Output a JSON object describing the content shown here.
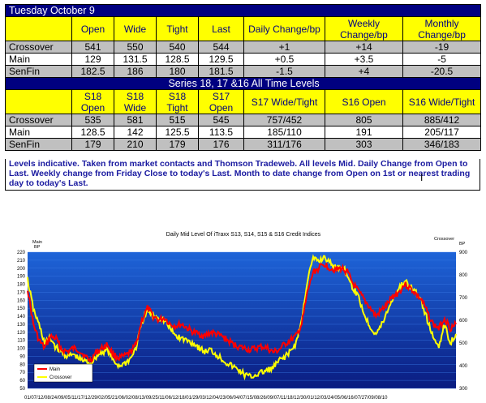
{
  "table1": {
    "title": "Tuesday October 9",
    "headers": [
      "Open",
      "Wide",
      "Tight",
      "Last",
      "Daily Change/bp",
      "Weekly Change/bp",
      "Monthly Change/bp"
    ],
    "rows": [
      {
        "label": "Crossover",
        "cells": [
          "541",
          "550",
          "540",
          "544",
          "+1",
          "+14",
          "-19"
        ]
      },
      {
        "label": "Main",
        "cells": [
          "129",
          "131.5",
          "128.5",
          "129.5",
          "+0.5",
          "+3.5",
          "-5"
        ]
      },
      {
        "label": "SenFin",
        "cells": [
          "182.5",
          "186",
          "180",
          "181.5",
          "-1.5",
          "+4",
          "-20.5"
        ]
      }
    ]
  },
  "table2": {
    "title": "Series 18, 17 &16 All Time Levels",
    "headers": [
      "S18 Open",
      "S18 Wide",
      "S18 Tight",
      "S17 Open",
      "S17 Wide/Tight",
      "S16 Open",
      "S16 Wide/Tight"
    ],
    "rows": [
      {
        "label": "Crossover",
        "cells": [
          "535",
          "581",
          "515",
          "545",
          "757/452",
          "805",
          "885/412"
        ]
      },
      {
        "label": "Main",
        "cells": [
          "128.5",
          "142",
          "125.5",
          "113.5",
          "185/110",
          "191",
          "205/117"
        ]
      },
      {
        "label": "SenFin",
        "cells": [
          "179",
          "210",
          "179",
          "176",
          "311/176",
          "303",
          "346/183"
        ]
      }
    ]
  },
  "note": "Levels indicative. Taken from market contacts and Thomson Tradeweb. All levels Mid. Daily Change from Open to Last. Weekly change from Friday Close to today's Last. Month to date change from Open on 1st or nearest trading day to today's Last.",
  "chart_data": {
    "type": "line",
    "title": "Daily Mid Level Of iTraxx S13, S14, S15 & S16 Credit Indices",
    "left_axis_title": "Main\nBP",
    "right_axis_title": "Crossover\nBP",
    "ylim_left": [
      50,
      220
    ],
    "yticks_left": [
      50,
      60,
      70,
      80,
      90,
      100,
      110,
      120,
      130,
      140,
      150,
      160,
      170,
      180,
      190,
      200,
      210,
      220
    ],
    "ylim_right": [
      300,
      900
    ],
    "yticks_right": [
      300,
      400,
      500,
      600,
      700,
      800,
      900
    ],
    "xtick_labels": "01/07/12/08/24/09/05/11/17/12/29/02/05/21/06/02/08/13/09/25/11/06/12/18/01/29/03/12/04/23/06/04/07/15/08/26/09/07/11/18/12/30/01/12/03/24/05/06/16/07/27/09/08/10",
    "legend": [
      "Main",
      "Crossover"
    ],
    "colors": {
      "main": "#ff0000",
      "crossover": "#ffff00",
      "bg_top": "#1e64d8",
      "bg_bottom": "#0a1c80"
    },
    "series": [
      {
        "name": "Main",
        "axis": "left",
        "values": [
          175,
          130,
          110,
          100,
          115,
          112,
          98,
          96,
          100,
          98,
          90,
          85,
          95,
          100,
          105,
          92,
          88,
          90,
          95,
          105,
          135,
          150,
          140,
          135,
          138,
          130,
          128,
          130,
          125,
          120,
          118,
          115,
          120,
          118,
          115,
          110,
          105,
          102,
          100,
          98,
          100,
          102,
          100,
          95,
          98,
          105,
          110,
          115,
          130,
          170,
          195,
          200,
          205,
          200,
          198,
          200,
          195,
          180,
          170,
          160,
          150,
          140,
          148,
          155,
          165,
          170,
          180,
          175,
          168,
          160,
          145,
          130,
          125,
          138,
          125,
          130
        ]
      },
      {
        "name": "Crossover",
        "axis": "right",
        "values": [
          780,
          650,
          580,
          500,
          520,
          480,
          460,
          440,
          450,
          430,
          420,
          410,
          440,
          460,
          470,
          420,
          400,
          410,
          430,
          480,
          590,
          640,
          620,
          610,
          600,
          560,
          530,
          520,
          510,
          500,
          480,
          460,
          470,
          450,
          430,
          410,
          395,
          380,
          360,
          350,
          360,
          370,
          380,
          390,
          420,
          440,
          460,
          500,
          600,
          780,
          870,
          860,
          880,
          850,
          830,
          840,
          800,
          740,
          700,
          620,
          570,
          540,
          580,
          640,
          700,
          740,
          770,
          750,
          720,
          680,
          600,
          520,
          490,
          580,
          500,
          540
        ]
      }
    ]
  }
}
